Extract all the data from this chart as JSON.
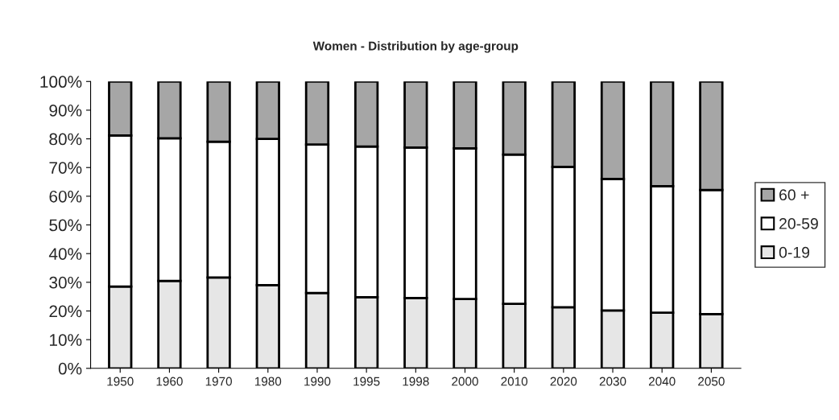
{
  "chart_data": {
    "type": "bar",
    "stacked": true,
    "title": "Women - Distribution by age-group",
    "categories": [
      "1950",
      "1960",
      "1970",
      "1980",
      "1990",
      "1995",
      "1998",
      "2000",
      "2010",
      "2020",
      "2030",
      "2040",
      "2050"
    ],
    "series": [
      {
        "name": "0-19",
        "color": "#e6e6e6",
        "values": [
          28.5,
          30.5,
          31.7,
          29,
          26.3,
          24.8,
          24.5,
          24.2,
          22.5,
          21.3,
          20.2,
          19.4,
          18.9
        ]
      },
      {
        "name": "20-59",
        "color": "#ffffff",
        "values": [
          52.7,
          49.7,
          47.3,
          51,
          51.7,
          52.5,
          52.5,
          52.5,
          52,
          48.9,
          45.8,
          44.1,
          43.3
        ]
      },
      {
        "name": "60 +",
        "color": "#a6a6a6",
        "values": [
          18.8,
          19.8,
          21,
          20,
          22,
          22.7,
          23,
          23.3,
          25.5,
          29.8,
          34,
          36.5,
          37.8
        ]
      }
    ],
    "ylim": [
      0,
      100
    ],
    "yticks": [
      {
        "value": 0,
        "label": "0%"
      },
      {
        "value": 10,
        "label": "10%"
      },
      {
        "value": 20,
        "label": "20%"
      },
      {
        "value": 30,
        "label": "30%"
      },
      {
        "value": 40,
        "label": "40%"
      },
      {
        "value": 50,
        "label": "50%"
      },
      {
        "value": 60,
        "label": "60%"
      },
      {
        "value": 70,
        "label": "70%"
      },
      {
        "value": 80,
        "label": "80%"
      },
      {
        "value": 90,
        "label": "90%"
      },
      {
        "value": 100,
        "label": "100%"
      }
    ],
    "grid": false,
    "legend": "right"
  }
}
